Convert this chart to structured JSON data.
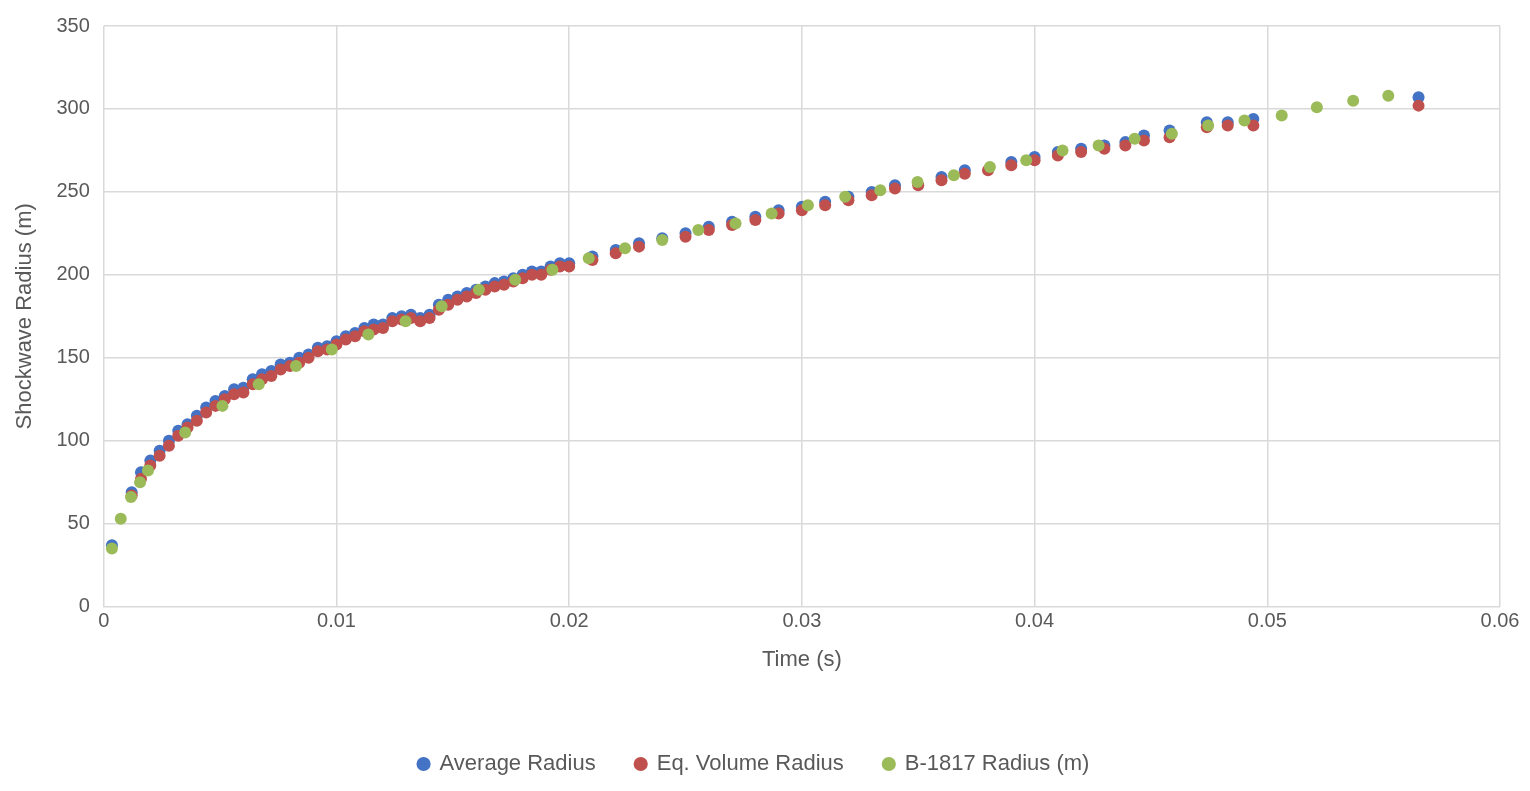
{
  "chart_data": {
    "type": "scatter",
    "xlabel": "Time (s)",
    "ylabel": "Shockwave Radius (m)",
    "xlim": [
      0,
      0.06
    ],
    "xticks": [
      0,
      0.01,
      0.02,
      0.03,
      0.04,
      0.05,
      0.06
    ],
    "ylim": [
      0,
      350
    ],
    "yticks": [
      0,
      50,
      100,
      150,
      200,
      250,
      300,
      350
    ],
    "grid": true,
    "legend": "bottom",
    "marker": "circle",
    "series": [
      {
        "name": "Average Radius",
        "color": "#4472c4",
        "x": [
          0.00035,
          0.0012,
          0.0016,
          0.002,
          0.0024,
          0.0028,
          0.0032,
          0.0036,
          0.004,
          0.0044,
          0.0048,
          0.0052,
          0.0056,
          0.006,
          0.0064,
          0.0068,
          0.0072,
          0.0076,
          0.008,
          0.0084,
          0.0088,
          0.0092,
          0.0096,
          0.01,
          0.0104,
          0.0108,
          0.0112,
          0.0116,
          0.012,
          0.0124,
          0.0128,
          0.0132,
          0.0136,
          0.014,
          0.0144,
          0.0148,
          0.0152,
          0.0156,
          0.016,
          0.0164,
          0.0168,
          0.0172,
          0.0176,
          0.018,
          0.0184,
          0.0188,
          0.0192,
          0.0196,
          0.02,
          0.021,
          0.022,
          0.023,
          0.024,
          0.025,
          0.026,
          0.027,
          0.028,
          0.029,
          0.03,
          0.031,
          0.032,
          0.033,
          0.034,
          0.036,
          0.037,
          0.039,
          0.04,
          0.041,
          0.042,
          0.043,
          0.0439,
          0.0447,
          0.0458,
          0.0474,
          0.0483,
          0.0494,
          0.0565
        ],
        "values": [
          37,
          69,
          81,
          88,
          94,
          100,
          106,
          110,
          115,
          120,
          124,
          127,
          131,
          132,
          137,
          140,
          142,
          146,
          147,
          150,
          152,
          156,
          157,
          160,
          163,
          165,
          168,
          170,
          170,
          174,
          175,
          176,
          174,
          176,
          182,
          185,
          187,
          189,
          191,
          193,
          195,
          196,
          198,
          200,
          202,
          202,
          205,
          207,
          207,
          211,
          215,
          219,
          222,
          225,
          229,
          232,
          235,
          239,
          241,
          244,
          247,
          250,
          254,
          259,
          263,
          268,
          271,
          274,
          276,
          278,
          280,
          284,
          287,
          292,
          292,
          294,
          307
        ]
      },
      {
        "name": "Eq. Volume Radius",
        "color": "#c0504d",
        "x": [
          0.0012,
          0.0016,
          0.002,
          0.0024,
          0.0028,
          0.0032,
          0.0036,
          0.004,
          0.0044,
          0.0048,
          0.0052,
          0.0056,
          0.006,
          0.0064,
          0.0068,
          0.0072,
          0.0076,
          0.008,
          0.0084,
          0.0088,
          0.0092,
          0.0096,
          0.01,
          0.0104,
          0.0108,
          0.0112,
          0.0116,
          0.012,
          0.0124,
          0.0128,
          0.0132,
          0.0136,
          0.014,
          0.0144,
          0.0148,
          0.0152,
          0.0156,
          0.016,
          0.0164,
          0.0168,
          0.0172,
          0.0176,
          0.018,
          0.0184,
          0.0188,
          0.0192,
          0.0196,
          0.02,
          0.021,
          0.022,
          0.023,
          0.025,
          0.026,
          0.027,
          0.028,
          0.029,
          0.03,
          0.031,
          0.032,
          0.033,
          0.034,
          0.035,
          0.036,
          0.037,
          0.038,
          0.039,
          0.04,
          0.041,
          0.042,
          0.043,
          0.0439,
          0.0447,
          0.0458,
          0.0474,
          0.0483,
          0.0494,
          0.0565
        ],
        "values": [
          67,
          77,
          85,
          91,
          97,
          103,
          108,
          112,
          117,
          121,
          125,
          128,
          129,
          134,
          137,
          139,
          143,
          145,
          147,
          150,
          154,
          155,
          158,
          161,
          163,
          166,
          167,
          168,
          172,
          173,
          174,
          172,
          174,
          179,
          182,
          185,
          187,
          189,
          191,
          193,
          194,
          196,
          198,
          200,
          200,
          203,
          205,
          205,
          209,
          213,
          217,
          223,
          227,
          230,
          233,
          237,
          239,
          242,
          245,
          248,
          252,
          254,
          257,
          261,
          263,
          266,
          269,
          272,
          274,
          276,
          278,
          281,
          283,
          289,
          290,
          290,
          302
        ]
      },
      {
        "name": "B-1817 Radius (m)",
        "color": "#9bbb59",
        "x": [
          0.00035,
          0.00073,
          0.00117,
          0.00156,
          0.0019,
          0.0035,
          0.0051,
          0.00666,
          0.00826,
          0.0098,
          0.01137,
          0.01297,
          0.01452,
          0.01612,
          0.01768,
          0.01928,
          0.02084,
          0.0224,
          0.024,
          0.02555,
          0.02715,
          0.0287,
          0.03026,
          0.03186,
          0.03337,
          0.03497,
          0.03653,
          0.03808,
          0.03964,
          0.0412,
          0.04275,
          0.0443,
          0.0459,
          0.04746,
          0.04902,
          0.05062,
          0.05213,
          0.05369,
          0.0552
        ],
        "values": [
          35,
          53,
          66,
          75,
          82,
          105,
          121,
          134,
          145,
          155,
          164,
          172,
          181,
          191,
          197,
          203,
          210,
          216,
          221,
          227,
          231,
          237,
          242,
          247,
          251,
          256,
          260,
          265,
          269,
          275,
          278,
          282,
          285,
          290,
          293,
          296,
          301,
          305,
          308
        ]
      }
    ]
  }
}
